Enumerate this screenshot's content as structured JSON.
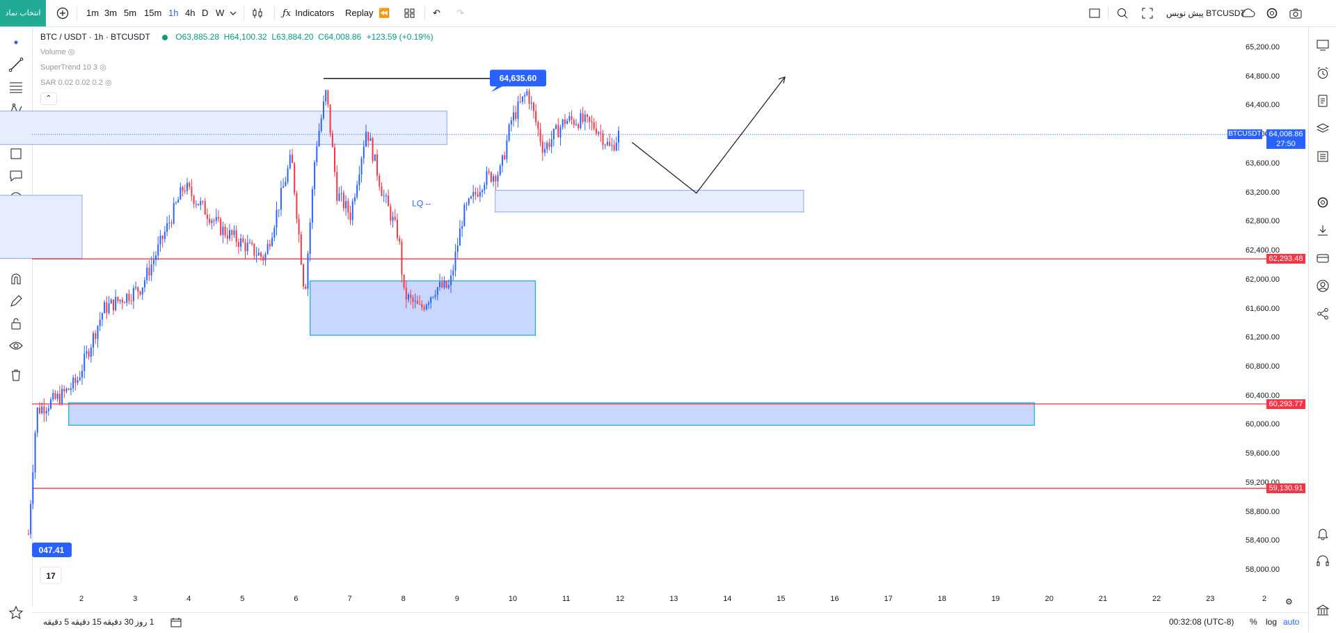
{
  "toolbar": {
    "symbol_button": "انتخاب نماد",
    "intervals": [
      "1m",
      "3m",
      "5m",
      "15m",
      "1h",
      "4h",
      "D",
      "W"
    ],
    "active_interval": "1h",
    "indicators_label": "Indicators",
    "replay_label": "Replay",
    "draft_label": "BTCUSDT پیش نویس"
  },
  "legend": {
    "symbol": "BTC / USDT · 1h · BTCUSDT",
    "open": "63,885.28",
    "high": "64,100.32",
    "low": "63,884.20",
    "close": "64,008.86",
    "change": "+123.59 (+0.19%)",
    "indicators": [
      "Volume",
      "SuperTrend 10 3",
      "SAR 0.02 0.02 0.2"
    ]
  },
  "annotations": {
    "high_label": "64,635.60",
    "low_label": "047.41",
    "lq_label": "LQ --"
  },
  "price_axis": {
    "ticks": [
      "65,200.00",
      "64,800.00",
      "64,400.00",
      "64,000.00",
      "63,600.00",
      "63,200.00",
      "62,800.00",
      "62,400.00",
      "62,000.00",
      "61,600.00",
      "61,200.00",
      "60,800.00",
      "60,400.00",
      "60,000.00",
      "59,600.00",
      "59,200.00",
      "58,800.00",
      "58,400.00",
      "58,000.00"
    ],
    "current_symbol": "BTCUSDT",
    "current_price": "64,008.86",
    "countdown": "27:50",
    "levels": [
      "62,293.48",
      "60,293.77",
      "59,130.91"
    ]
  },
  "time_axis": [
    "2",
    "3",
    "4",
    "5",
    "6",
    "7",
    "8",
    "9",
    "10",
    "11",
    "12",
    "13",
    "14",
    "15",
    "16",
    "17",
    "18",
    "19",
    "20",
    "21",
    "22",
    "23",
    "2"
  ],
  "bottom": {
    "ranges": [
      "5 دقیقه",
      "15 دقیقه",
      "30 دقیقه",
      "1 روز"
    ],
    "clock": "00:32:08 (UTC-8)",
    "percent": "%",
    "log": "log",
    "auto": "auto"
  },
  "colors": {
    "bull": "#2962ff",
    "bear": "#f23645",
    "zone": "#c5d4ff",
    "level": "#f23645",
    "accent": "#2962ff"
  },
  "chart_data": {
    "type": "candlestick",
    "title": "BTC / USDT · 1h · BTCUSDT",
    "ylim": [
      57800,
      65400
    ],
    "x_ticks": [
      "2",
      "3",
      "4",
      "5",
      "6",
      "7",
      "8",
      "9",
      "10",
      "11",
      "12",
      "13",
      "14",
      "15",
      "16",
      "17",
      "18",
      "19",
      "20",
      "21",
      "22",
      "23"
    ],
    "path": [
      [
        1,
        58500
      ],
      [
        1.15,
        60200
      ],
      [
        1.6,
        60400
      ],
      [
        1.9,
        60600
      ],
      [
        2.4,
        61600
      ],
      [
        3.1,
        61900
      ],
      [
        3.4,
        62400
      ],
      [
        3.9,
        63300
      ],
      [
        4.6,
        62700
      ],
      [
        5.4,
        62300
      ],
      [
        5.9,
        63700
      ],
      [
        6.15,
        61800
      ],
      [
        6.35,
        63800
      ],
      [
        6.55,
        64600
      ],
      [
        6.75,
        63200
      ],
      [
        7.0,
        62900
      ],
      [
        7.3,
        64100
      ],
      [
        7.6,
        63200
      ],
      [
        7.9,
        62600
      ],
      [
        8.0,
        61800
      ],
      [
        8.3,
        61600
      ],
      [
        8.6,
        61900
      ],
      [
        8.85,
        61900
      ],
      [
        9.1,
        62900
      ],
      [
        9.5,
        63400
      ],
      [
        9.8,
        63500
      ],
      [
        10.0,
        64200
      ],
      [
        10.3,
        64600
      ],
      [
        10.6,
        63800
      ],
      [
        11.0,
        64200
      ],
      [
        11.3,
        64200
      ],
      [
        11.6,
        64100
      ],
      [
        11.85,
        63800
      ],
      [
        12.0,
        64008
      ]
    ],
    "levels": [
      62293.48,
      60293.77,
      59130.91
    ],
    "current_price": 64008.86,
    "swing_high": 64635.6,
    "projection": [
      [
        12.25,
        63900
      ],
      [
        13.45,
        63200
      ],
      [
        15.1,
        64800
      ]
    ],
    "zones": [
      {
        "x": [
          0.4,
          8.8
        ],
        "y": [
          63870,
          64330
        ],
        "style": "light"
      },
      {
        "x": [
          0.4,
          2.0
        ],
        "y": [
          62300,
          63170
        ],
        "style": "light"
      },
      {
        "x": [
          6.25,
          10.45
        ],
        "y": [
          61240,
          61990
        ],
        "style": "strong"
      },
      {
        "x": [
          9.7,
          15.45
        ],
        "y": [
          62940,
          63240
        ],
        "style": "light"
      },
      {
        "x": [
          1.75,
          19.75
        ],
        "y": [
          60000,
          60310
        ],
        "style": "strong"
      }
    ]
  }
}
